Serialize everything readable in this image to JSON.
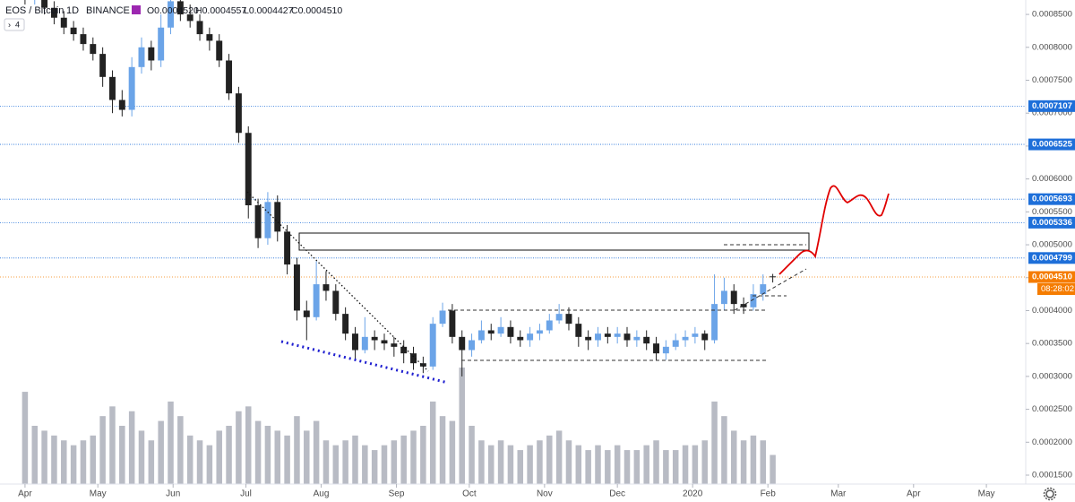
{
  "chart_data": {
    "type": "candlestick",
    "title": "EOS / Bitcoin",
    "interval": "1D",
    "exchange": "BINANCE",
    "ohlc_labels": [
      "O0.0004520",
      "H0.0004557",
      "L0.0004427",
      "C0.0004510"
    ],
    "badge": "4",
    "x": [
      0,
      4,
      8,
      12,
      16,
      20,
      24,
      28,
      32,
      36,
      40,
      44,
      48,
      52,
      56,
      60,
      64,
      68,
      72,
      76,
      80,
      84,
      88,
      92,
      96,
      100,
      104,
      108,
      112,
      116,
      120,
      124,
      128,
      132,
      136,
      140,
      144,
      148,
      152,
      156,
      160,
      164,
      168,
      172,
      176,
      180,
      184,
      188,
      192,
      196,
      200,
      204,
      208,
      212,
      216,
      220,
      224,
      228,
      232,
      236,
      240,
      244,
      248,
      252,
      256,
      260,
      264,
      268,
      272,
      276,
      280,
      284,
      288,
      292,
      296,
      300,
      304,
      308
    ],
    "open": [
      0.000885,
      0.000875,
      0.00088,
      0.00086,
      0.000845,
      0.00083,
      0.00082,
      0.000805,
      0.00079,
      0.000755,
      0.00072,
      0.000705,
      0.00077,
      0.0008,
      0.00078,
      0.00083,
      0.00087,
      0.00085,
      0.00084,
      0.00082,
      0.00081,
      0.00078,
      0.00073,
      0.00067,
      0.00056,
      0.00051,
      0.000565,
      0.00052,
      0.00047,
      0.0004,
      0.00039,
      0.00044,
      0.00043,
      0.000395,
      0.000365,
      0.00034,
      0.00036,
      0.000355,
      0.00035,
      0.000345,
      0.000335,
      0.00032,
      0.000315,
      0.00038,
      0.0004,
      0.00036,
      0.00034,
      0.000355,
      0.00037,
      0.000365,
      0.000375,
      0.00036,
      0.000355,
      0.000365,
      0.00037,
      0.000385,
      0.000395,
      0.00038,
      0.00036,
      0.000355,
      0.000365,
      0.00036,
      0.000365,
      0.000355,
      0.00036,
      0.00035,
      0.000335,
      0.000345,
      0.000355,
      0.00036,
      0.000365,
      0.000355,
      0.00041,
      0.00043,
      0.00041,
      0.000405,
      0.000425,
      0.000452
    ],
    "high": [
      0.000895,
      0.00089,
      0.00089,
      0.00087,
      0.000855,
      0.00084,
      0.00083,
      0.000815,
      0.0008,
      0.000765,
      0.000735,
      0.000785,
      0.000815,
      0.00081,
      0.00085,
      0.000895,
      0.000885,
      0.000865,
      0.00085,
      0.00083,
      0.00082,
      0.00079,
      0.00074,
      0.00068,
      0.00057,
      0.00058,
      0.000575,
      0.00053,
      0.00048,
      0.000415,
      0.000475,
      0.00046,
      0.00044,
      0.000405,
      0.000375,
      0.00039,
      0.00037,
      0.000365,
      0.00036,
      0.000355,
      0.000345,
      0.00033,
      0.00039,
      0.000412,
      0.00041,
      0.00037,
      0.000365,
      0.000385,
      0.00038,
      0.00039,
      0.000385,
      0.00037,
      0.000375,
      0.00038,
      0.000395,
      0.00041,
      0.000405,
      0.00039,
      0.00037,
      0.000375,
      0.000375,
      0.000375,
      0.000375,
      0.00037,
      0.00037,
      0.00036,
      0.000355,
      0.000365,
      0.00037,
      0.000375,
      0.00037,
      0.000455,
      0.00045,
      0.00044,
      0.00042,
      0.00044,
      0.000455,
      0.0004557
    ],
    "low": [
      0.000865,
      0.000865,
      0.00085,
      0.000835,
      0.00082,
      0.00081,
      0.000795,
      0.00078,
      0.00074,
      0.0007,
      0.000695,
      0.000695,
      0.00076,
      0.000765,
      0.00077,
      0.00082,
      0.00084,
      0.00083,
      0.00081,
      0.000795,
      0.00077,
      0.00072,
      0.000655,
      0.00054,
      0.000495,
      0.0005,
      0.000505,
      0.000455,
      0.000385,
      0.000355,
      0.000385,
      0.000415,
      0.000385,
      0.000355,
      0.000325,
      0.000335,
      0.00034,
      0.00034,
      0.00033,
      0.00032,
      0.00031,
      0.000305,
      0.00031,
      0.000375,
      0.00035,
      0.0003,
      0.00033,
      0.00035,
      0.000355,
      0.00036,
      0.00035,
      0.000345,
      0.000345,
      0.000355,
      0.000365,
      0.00038,
      0.00037,
      0.000345,
      0.00034,
      0.000345,
      0.00035,
      0.00035,
      0.000345,
      0.000345,
      0.00034,
      0.000325,
      0.000325,
      0.00034,
      0.000345,
      0.00035,
      0.00034,
      0.00035,
      0.0004,
      0.000395,
      0.000395,
      0.0004,
      0.000415,
      0.0004427
    ],
    "close": [
      0.000875,
      0.00088,
      0.00086,
      0.000845,
      0.00083,
      0.00082,
      0.000805,
      0.00079,
      0.000755,
      0.00072,
      0.000705,
      0.00077,
      0.0008,
      0.00078,
      0.00083,
      0.00087,
      0.00085,
      0.00084,
      0.00082,
      0.00081,
      0.00078,
      0.00073,
      0.00067,
      0.00056,
      0.00051,
      0.000565,
      0.00052,
      0.00047,
      0.0004,
      0.00039,
      0.00044,
      0.00043,
      0.000395,
      0.000365,
      0.00034,
      0.00036,
      0.000355,
      0.00035,
      0.000345,
      0.000335,
      0.00032,
      0.000315,
      0.00038,
      0.0004,
      0.00036,
      0.00034,
      0.000355,
      0.00037,
      0.000365,
      0.000375,
      0.00036,
      0.000355,
      0.000365,
      0.00037,
      0.000385,
      0.000395,
      0.00038,
      0.00036,
      0.000355,
      0.000365,
      0.00036,
      0.000365,
      0.000355,
      0.00036,
      0.00035,
      0.000335,
      0.000345,
      0.000355,
      0.00036,
      0.000365,
      0.000355,
      0.00041,
      0.00043,
      0.00041,
      0.000405,
      0.000425,
      0.00044,
      0.000451
    ],
    "volume": [
      95,
      60,
      55,
      50,
      45,
      40,
      45,
      50,
      70,
      80,
      60,
      75,
      55,
      45,
      65,
      85,
      70,
      50,
      45,
      40,
      55,
      60,
      75,
      80,
      65,
      60,
      55,
      50,
      70,
      55,
      65,
      45,
      40,
      45,
      50,
      40,
      35,
      40,
      45,
      50,
      55,
      60,
      85,
      70,
      65,
      120,
      60,
      45,
      40,
      45,
      40,
      35,
      40,
      45,
      50,
      55,
      45,
      40,
      35,
      40,
      35,
      40,
      35,
      35,
      40,
      45,
      35,
      35,
      40,
      40,
      45,
      85,
      70,
      55,
      45,
      50,
      45,
      30
    ],
    "up_color": "#6ba4e8",
    "down_color": "#222222",
    "volume_color": "#b8bbc4",
    "level_color": "#1e6fd9",
    "levels": [
      0.0007107,
      0.0006525,
      0.0005693,
      0.0005336,
      0.0004799
    ],
    "last_price": {
      "value": 0.000451,
      "label": "0.0004510"
    },
    "last_price_color": "#f57c00",
    "countdown": "08:28:02",
    "xlim": [
      -10.3,
      412.2
    ],
    "xticks": [
      {
        "value": 0,
        "label": "Apr"
      },
      {
        "value": 30,
        "label": "May"
      },
      {
        "value": 61,
        "label": "Jun"
      },
      {
        "value": 91,
        "label": "Jul"
      },
      {
        "value": 122,
        "label": "Aug"
      },
      {
        "value": 153,
        "label": "Sep"
      },
      {
        "value": 183,
        "label": "Oct"
      },
      {
        "value": 214,
        "label": "Nov"
      },
      {
        "value": 244,
        "label": "Dec"
      },
      {
        "value": 275,
        "label": "2020"
      },
      {
        "value": 306,
        "label": "Feb"
      },
      {
        "value": 335,
        "label": "Mar"
      },
      {
        "value": 366,
        "label": "Apr"
      },
      {
        "value": 396,
        "label": "May"
      }
    ],
    "ylim": [
      0.0001364,
      0.0008719
    ],
    "yticks": [
      {
        "value": 0.00085,
        "label": "0.0008500"
      },
      {
        "value": 0.0008,
        "label": "0.0008000"
      },
      {
        "value": 0.00075,
        "label": "0.0007500"
      },
      {
        "value": 0.0007,
        "label": "0.0007000"
      },
      {
        "value": 0.00065,
        "label": "0.0006500"
      },
      {
        "value": 0.0006,
        "label": "0.0006000"
      },
      {
        "value": 0.00055,
        "label": "0.0005500"
      },
      {
        "value": 0.0005,
        "label": "0.0005000"
      },
      {
        "value": 0.00045,
        "label": "0.0004500"
      },
      {
        "value": 0.0004,
        "label": "0.0004000"
      },
      {
        "value": 0.00035,
        "label": "0.0003500"
      },
      {
        "value": 0.0003,
        "label": "0.0003000"
      },
      {
        "value": 0.00025,
        "label": "0.0002500"
      },
      {
        "value": 0.0002,
        "label": "0.0002000"
      },
      {
        "value": 0.00015,
        "label": "0.0001500"
      }
    ],
    "grid": false
  }
}
